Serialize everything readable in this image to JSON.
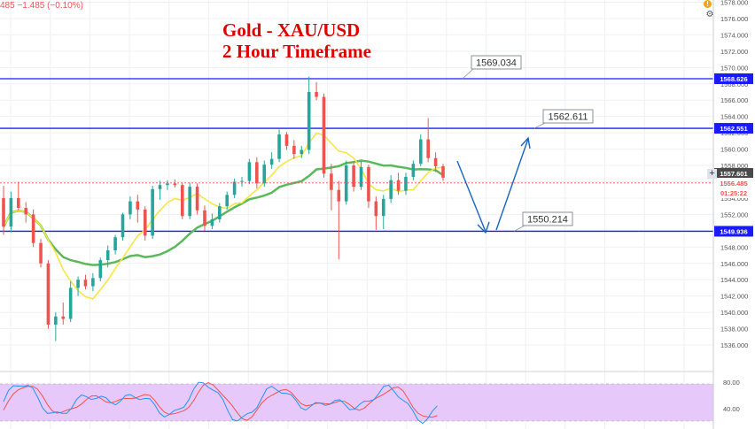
{
  "header": {
    "ohlc_fragment": "485  −1.485  (−0.10%)"
  },
  "title": {
    "line1": "Gold - XAU/USD",
    "line2": "2 Hour Timeframe"
  },
  "icons": {
    "settings": "gear-icon",
    "warning": "warning-icon",
    "plus": "plus-icon"
  },
  "colors": {
    "up_candle": "#26a69a",
    "down_candle": "#ef5350",
    "level_line": "#1a1aff",
    "ma_fast": "#f5e642",
    "ma_slow": "#5cb85c",
    "arrow": "#1565c0",
    "stoch_k": "#2196f3",
    "stoch_d": "#ef5350",
    "stoch_band": "#e6c8fa",
    "title": "#e00000"
  },
  "chart_data": {
    "type": "candlestick",
    "title": "Gold - XAU/USD 2 Hour Timeframe",
    "ylim": [
      1534,
      1578
    ],
    "y_ticks": [
      "1578.000",
      "1576.000",
      "1574.000",
      "1572.000",
      "1570.000",
      "1568.000",
      "1566.000",
      "1564.000",
      "1562.000",
      "1560.000",
      "1558.000",
      "1556.000",
      "1554.000",
      "1552.000",
      "1550.000",
      "1548.000",
      "1546.000",
      "1544.000",
      "1542.000",
      "1540.000",
      "1538.000",
      "1536.000"
    ],
    "current_price": "1557.601",
    "last_price": "1556.485",
    "countdown": "01:25:22",
    "levels": [
      {
        "value": 1568.626,
        "label": "1568.626",
        "callout": "1569.034"
      },
      {
        "value": 1562.551,
        "label": "1562.551",
        "callout": "1562.611"
      },
      {
        "value": 1549.936,
        "label": "1549.936",
        "callout": "1550.214"
      }
    ],
    "candles": [
      [
        1554.0,
        1555.5,
        1549.5,
        1550.5
      ],
      [
        1550.5,
        1554.8,
        1549.8,
        1554.0
      ],
      [
        1554.0,
        1556.0,
        1552.5,
        1552.8
      ],
      [
        1552.8,
        1553.5,
        1551.0,
        1552.0
      ],
      [
        1552.0,
        1552.6,
        1548.0,
        1548.5
      ],
      [
        1548.5,
        1549.0,
        1545.5,
        1546.0
      ],
      [
        1546.0,
        1546.4,
        1538.0,
        1538.5
      ],
      [
        1538.5,
        1540.0,
        1536.5,
        1539.5
      ],
      [
        1539.5,
        1541.2,
        1538.5,
        1539.2
      ],
      [
        1539.2,
        1543.8,
        1538.8,
        1543.0
      ],
      [
        1543.0,
        1544.4,
        1542.0,
        1544.0
      ],
      [
        1544.0,
        1544.6,
        1542.8,
        1543.2
      ],
      [
        1543.2,
        1544.8,
        1542.6,
        1544.2
      ],
      [
        1544.2,
        1546.7,
        1543.8,
        1546.4
      ],
      [
        1546.4,
        1548.2,
        1545.5,
        1547.6
      ],
      [
        1547.6,
        1549.5,
        1547.1,
        1549.2
      ],
      [
        1549.2,
        1552.2,
        1548.8,
        1552.0
      ],
      [
        1552.0,
        1554.2,
        1551.4,
        1553.6
      ],
      [
        1553.6,
        1554.4,
        1551.0,
        1552.6
      ],
      [
        1552.6,
        1553.0,
        1548.8,
        1549.4
      ],
      [
        1549.4,
        1555.5,
        1549.0,
        1555.1
      ],
      [
        1555.1,
        1556.1,
        1553.8,
        1555.6
      ],
      [
        1555.6,
        1556.2,
        1555.0,
        1555.8
      ],
      [
        1555.8,
        1556.3,
        1555.3,
        1555.6
      ],
      [
        1555.6,
        1555.9,
        1551.4,
        1551.8
      ],
      [
        1551.8,
        1555.9,
        1551.4,
        1555.4
      ],
      [
        1555.4,
        1555.8,
        1552.0,
        1552.5
      ],
      [
        1552.5,
        1553.1,
        1550.0,
        1550.6
      ],
      [
        1550.6,
        1552.1,
        1550.2,
        1551.4
      ],
      [
        1551.4,
        1553.4,
        1551.0,
        1553.0
      ],
      [
        1553.0,
        1554.8,
        1552.6,
        1554.4
      ],
      [
        1554.4,
        1556.4,
        1554.0,
        1556.0
      ],
      [
        1556.0,
        1556.6,
        1555.4,
        1556.1
      ],
      [
        1556.1,
        1558.8,
        1555.7,
        1558.4
      ],
      [
        1558.4,
        1559.0,
        1555.2,
        1555.8
      ],
      [
        1555.8,
        1558.6,
        1555.4,
        1558.1
      ],
      [
        1558.1,
        1559.6,
        1557.6,
        1558.8
      ],
      [
        1558.8,
        1562.4,
        1558.4,
        1561.8
      ],
      [
        1561.8,
        1562.1,
        1559.9,
        1560.4
      ],
      [
        1560.4,
        1561.1,
        1558.8,
        1559.4
      ],
      [
        1559.4,
        1560.4,
        1558.9,
        1559.9
      ],
      [
        1559.9,
        1568.9,
        1559.4,
        1567.0
      ],
      [
        1567.0,
        1568.2,
        1566.0,
        1566.4
      ],
      [
        1566.4,
        1566.8,
        1556.5,
        1557.0
      ],
      [
        1557.0,
        1558.2,
        1552.5,
        1555.0
      ],
      [
        1555.0,
        1556.1,
        1546.5,
        1553.6
      ],
      [
        1553.6,
        1558.6,
        1553.2,
        1558.0
      ],
      [
        1558.0,
        1558.4,
        1554.8,
        1555.4
      ],
      [
        1555.4,
        1558.5,
        1555.0,
        1557.8
      ],
      [
        1557.8,
        1558.1,
        1552.8,
        1553.6
      ],
      [
        1553.6,
        1554.2,
        1550.1,
        1551.8
      ],
      [
        1551.8,
        1554.4,
        1550.2,
        1553.9
      ],
      [
        1553.9,
        1556.8,
        1553.4,
        1556.2
      ],
      [
        1556.2,
        1557.1,
        1554.4,
        1554.9
      ],
      [
        1554.9,
        1557.1,
        1554.4,
        1556.6
      ],
      [
        1556.6,
        1558.6,
        1556.2,
        1558.2
      ],
      [
        1558.2,
        1561.8,
        1557.9,
        1561.2
      ],
      [
        1561.2,
        1563.8,
        1558.4,
        1558.9
      ],
      [
        1558.9,
        1559.6,
        1557.2,
        1557.9
      ],
      [
        1557.9,
        1558.2,
        1556.1,
        1556.5
      ]
    ],
    "stochastic_ticks": [
      "80.00",
      "40.00"
    ]
  }
}
